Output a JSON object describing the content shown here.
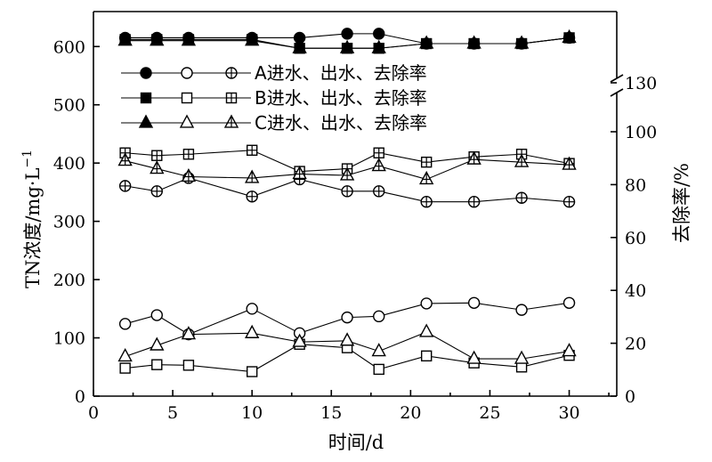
{
  "chart_data": {
    "type": "line",
    "xlabel": "时间/d",
    "ylabel": "TN浓度/mg·L",
    "ylabel_sup": "−1",
    "y2label": "去除率/%",
    "xlim": [
      0,
      33
    ],
    "ylim": [
      0,
      660
    ],
    "y2lim": [
      0,
      130
    ],
    "x_ticks": [
      0,
      5,
      10,
      15,
      20,
      25,
      30
    ],
    "y_ticks": [
      0,
      100,
      200,
      300,
      400,
      500,
      600
    ],
    "y2_ticks": [
      0,
      20,
      40,
      60,
      80,
      100,
      130
    ],
    "axis_break": "y2 between 100 and 130",
    "x": [
      2,
      4,
      6,
      10,
      13,
      16,
      18,
      21,
      24,
      27,
      30
    ],
    "legend": [
      {
        "text": "A进水、出水、去除率",
        "marker": "circle"
      },
      {
        "text": "B进水、出水、去除率",
        "marker": "square"
      },
      {
        "text": "C进水、出水、去除率",
        "marker": "triangle"
      }
    ],
    "series": [
      {
        "group": "A",
        "kind": "influent",
        "axis": "left",
        "marker": "circle",
        "fill": "filled",
        "values": [
          615,
          615,
          615,
          615,
          615,
          622,
          622,
          605,
          605,
          605,
          615
        ]
      },
      {
        "group": "B",
        "kind": "influent",
        "axis": "left",
        "marker": "square",
        "fill": "filled",
        "values": [
          612,
          612,
          612,
          612,
          597,
          597,
          597,
          605,
          605,
          605,
          615
        ]
      },
      {
        "group": "C",
        "kind": "influent",
        "axis": "left",
        "marker": "triangle",
        "fill": "filled",
        "values": [
          610,
          610,
          610,
          610,
          597,
          597,
          597,
          605,
          605,
          605,
          615
        ]
      },
      {
        "group": "A",
        "kind": "effluent",
        "axis": "left",
        "marker": "circle",
        "fill": "open",
        "values": [
          124,
          139,
          106,
          150,
          108,
          135,
          137,
          159,
          160,
          148,
          160
        ]
      },
      {
        "group": "B",
        "kind": "effluent",
        "axis": "left",
        "marker": "square",
        "fill": "open",
        "values": [
          48,
          54,
          53,
          42,
          89,
          83,
          46,
          69,
          57,
          50,
          70
        ]
      },
      {
        "group": "C",
        "kind": "effluent",
        "axis": "left",
        "marker": "triangle",
        "fill": "open",
        "values": [
          68,
          87,
          106,
          108,
          93,
          95,
          77,
          110,
          64,
          64,
          77
        ]
      },
      {
        "group": "A",
        "kind": "removal",
        "axis": "right",
        "marker": "circle",
        "fill": "plus",
        "values": [
          79.5,
          77.5,
          82.5,
          75.5,
          82,
          77.5,
          77.5,
          73.5,
          73.5,
          75,
          73.5
        ]
      },
      {
        "group": "B",
        "kind": "removal",
        "axis": "right",
        "marker": "square",
        "fill": "plus",
        "values": [
          92,
          91,
          91.5,
          93,
          85,
          86,
          92,
          88.5,
          90.5,
          91.5,
          88
        ]
      },
      {
        "group": "C",
        "kind": "removal",
        "axis": "right",
        "marker": "triangle",
        "fill": "plus",
        "values": [
          89,
          86,
          83,
          82.5,
          84,
          83.5,
          87,
          82,
          89.5,
          88.5,
          87.5
        ]
      }
    ]
  }
}
